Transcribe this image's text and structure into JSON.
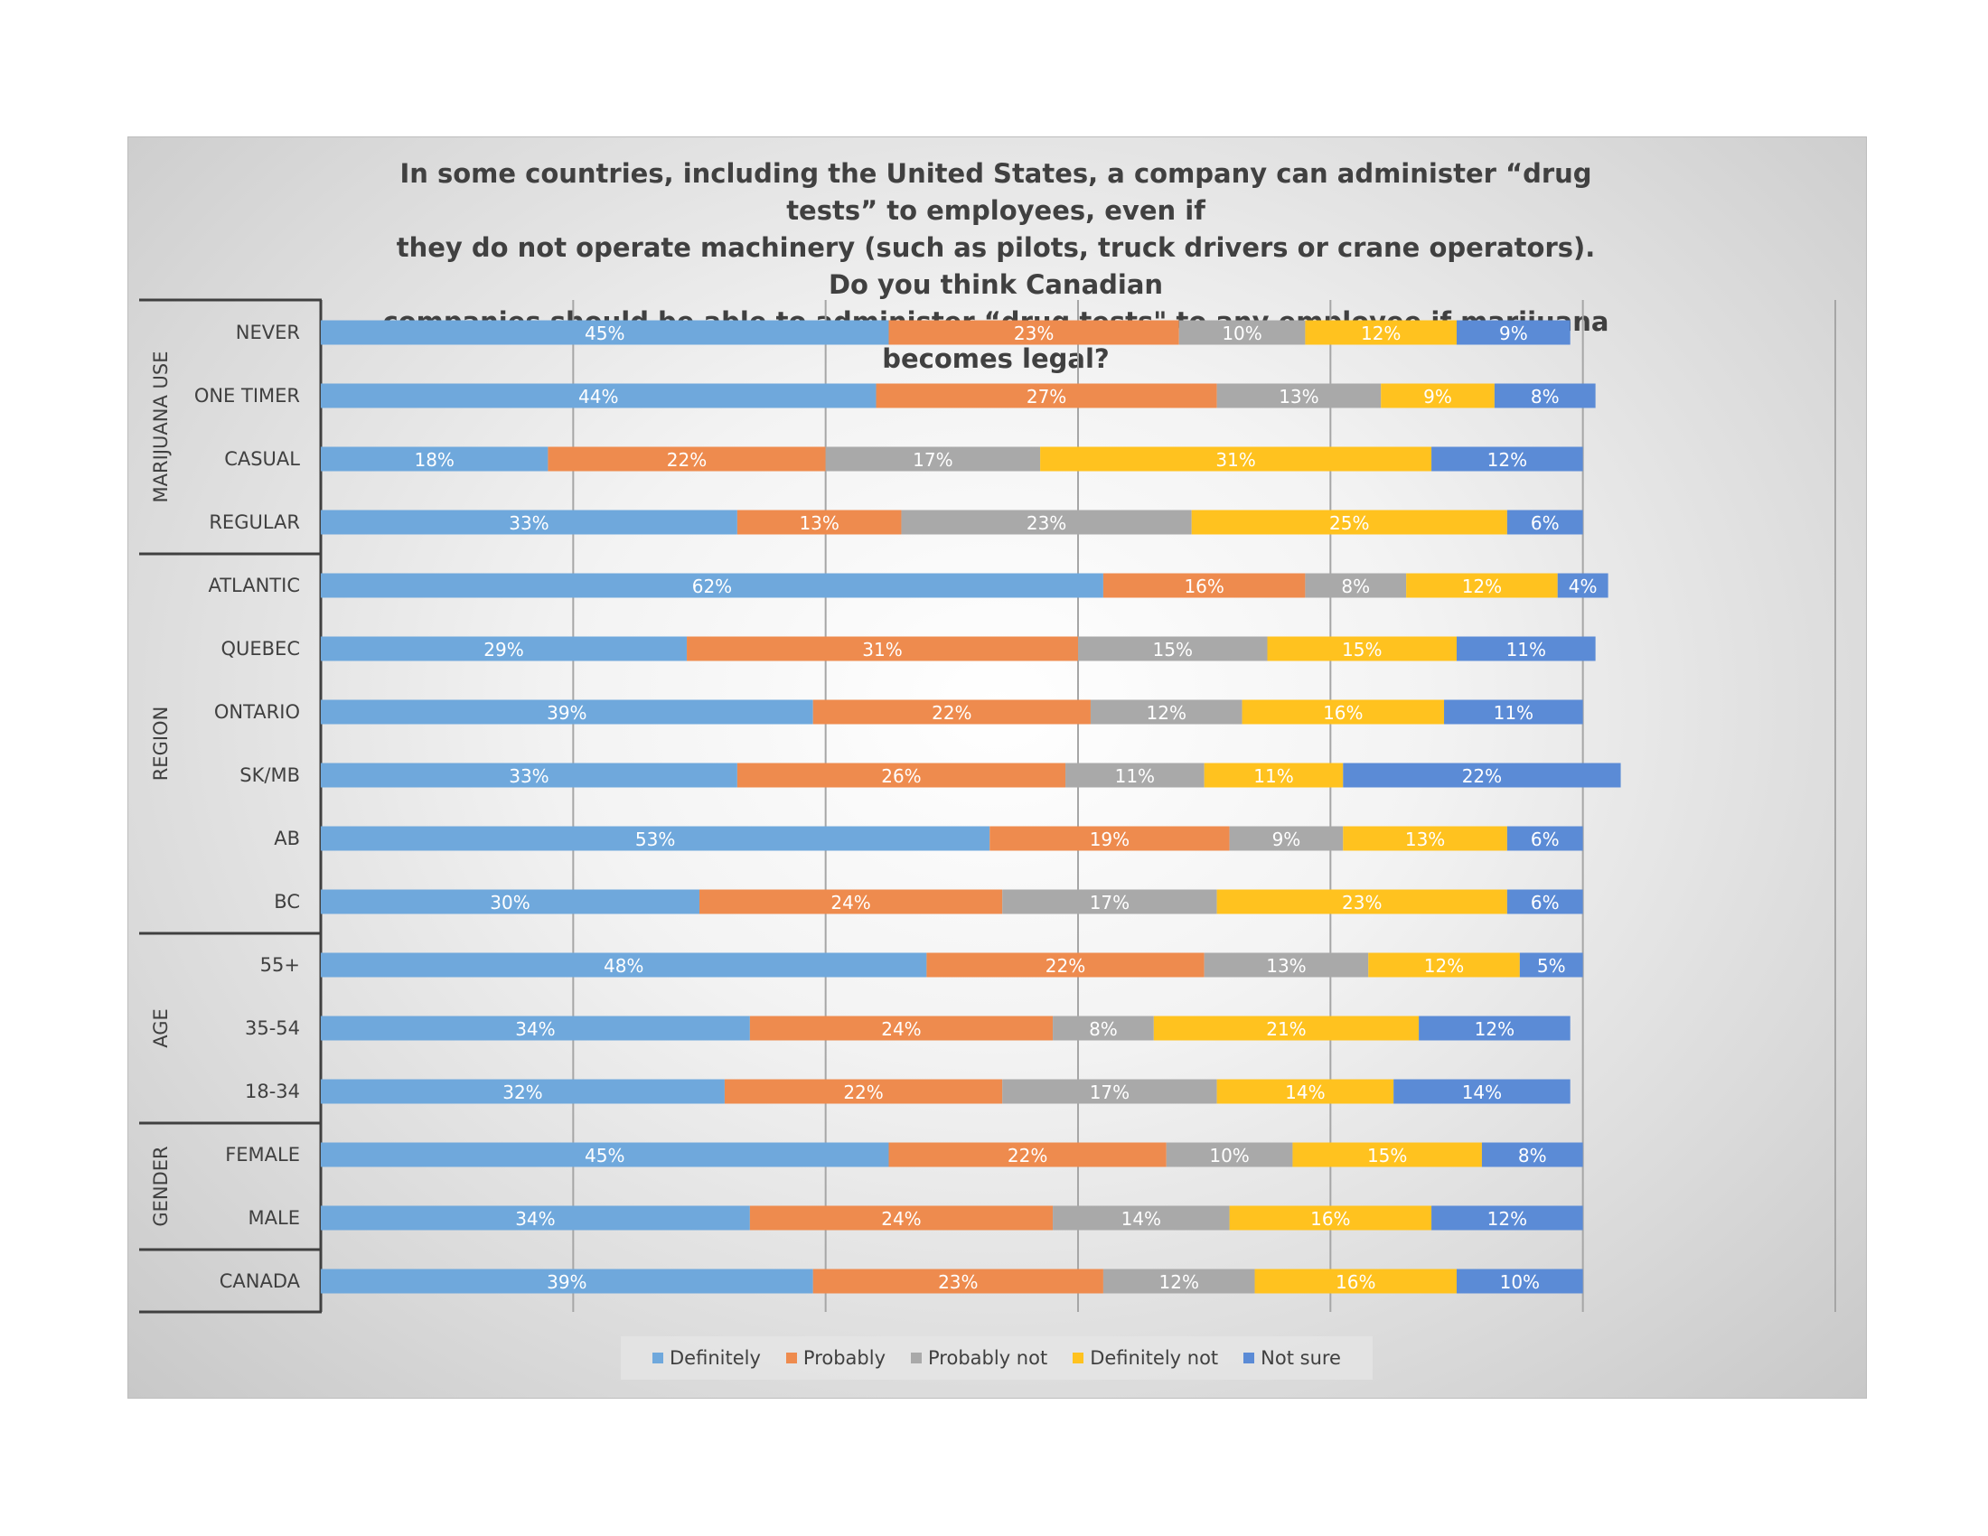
{
  "chart_data": {
    "type": "bar",
    "orientation": "horizontal",
    "stacked": true,
    "title": "In some countries, including the United States, a company can administer “drug tests” to employees, even if they do not operate machinery (such as pilots, truck drivers or crane operators). Do you think Canadian companies should be able to administer “drug tests\" to any employee if marijuana becomes legal?",
    "title_lines": [
      "In some countries, including the United States, a company can administer “drug tests” to employees, even if",
      "they do not operate machinery (such as pilots, truck drivers or crane operators). Do you think Canadian",
      "companies should be able to administer “drug tests\" to any employee if marijuana becomes legal?"
    ],
    "xlim": [
      0,
      120
    ],
    "grid": true,
    "legend_position": "bottom",
    "groups": [
      {
        "name": "MARIJUANA USE",
        "categories": [
          "NEVER",
          "ONE TIMER",
          "CASUAL",
          "REGULAR"
        ]
      },
      {
        "name": "REGION",
        "categories": [
          "ATLANTIC",
          "QUEBEC",
          "ONTARIO",
          "SK/MB",
          "AB",
          "BC"
        ]
      },
      {
        "name": "AGE",
        "categories": [
          "55+",
          "35-54",
          "18-34"
        ]
      },
      {
        "name": "GENDER",
        "categories": [
          "FEMALE",
          "MALE"
        ]
      },
      {
        "name": "",
        "categories": [
          "CANADA"
        ]
      }
    ],
    "categories": [
      "NEVER",
      "ONE TIMER",
      "CASUAL",
      "REGULAR",
      "ATLANTIC",
      "QUEBEC",
      "ONTARIO",
      "SK/MB",
      "AB",
      "BC",
      "55+",
      "35-54",
      "18-34",
      "FEMALE",
      "MALE",
      "CANADA"
    ],
    "series": [
      {
        "name": "Definitely",
        "color": "#6fa8dc",
        "values": [
          45,
          44,
          18,
          33,
          62,
          29,
          39,
          33,
          53,
          30,
          48,
          34,
          32,
          45,
          34,
          39
        ]
      },
      {
        "name": "Probably",
        "color": "#ee8b4e",
        "values": [
          23,
          27,
          22,
          13,
          16,
          31,
          22,
          26,
          19,
          24,
          22,
          24,
          22,
          22,
          24,
          23
        ]
      },
      {
        "name": "Probably not",
        "color": "#a9a9a9",
        "values": [
          10,
          13,
          17,
          23,
          8,
          15,
          12,
          11,
          9,
          17,
          13,
          8,
          17,
          10,
          14,
          12
        ]
      },
      {
        "name": "Definitely not",
        "color": "#ffc21f",
        "values": [
          12,
          9,
          31,
          25,
          12,
          15,
          16,
          11,
          13,
          23,
          12,
          21,
          14,
          15,
          16,
          16
        ]
      },
      {
        "name": "Not sure",
        "color": "#5b8bd6",
        "values": [
          9,
          8,
          12,
          6,
          4,
          11,
          11,
          22,
          6,
          6,
          5,
          12,
          14,
          8,
          12,
          10
        ]
      }
    ]
  }
}
